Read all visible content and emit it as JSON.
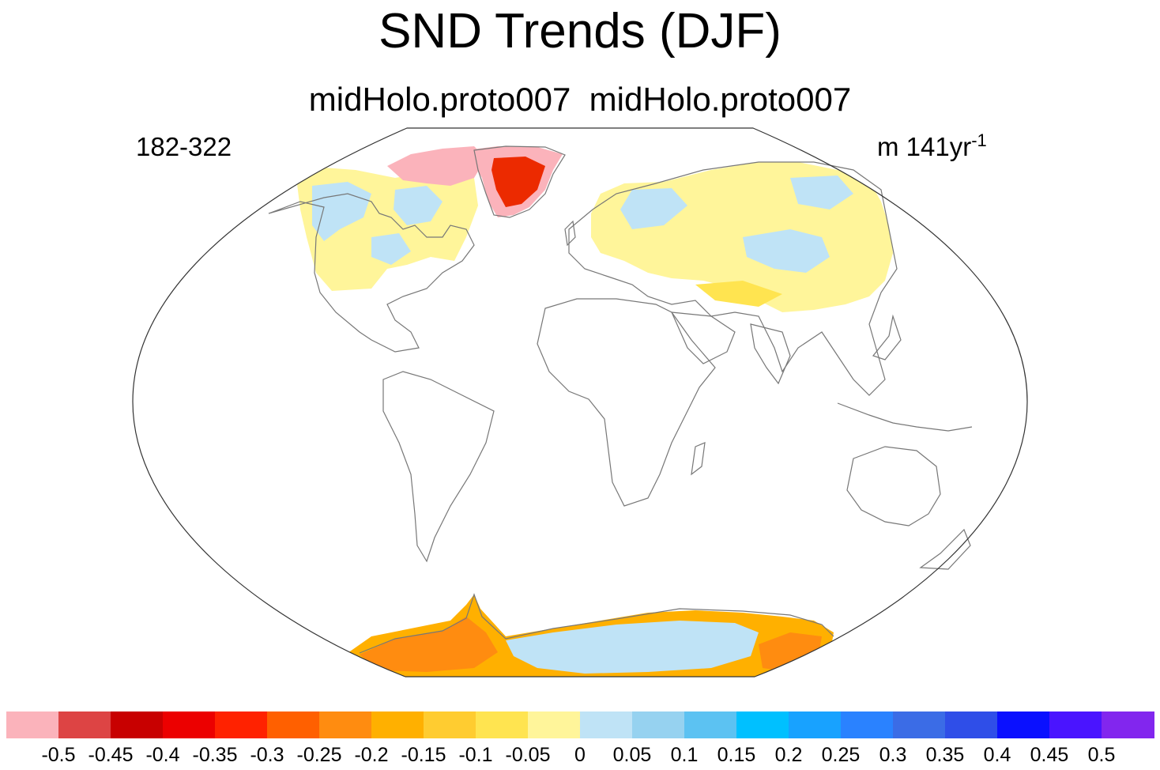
{
  "title": "SND Trends (DJF)",
  "subtitle": "midHolo.proto007  midHolo.proto007",
  "left_label": "182-322",
  "right_label": {
    "prefix": "m 141yr",
    "superscript": "-1"
  },
  "colorbar": {
    "colors": [
      "#fbb3bb",
      "#dd4444",
      "#c80000",
      "#ec0000",
      "#ff2200",
      "#ff6000",
      "#ff8c10",
      "#ffb000",
      "#ffcc30",
      "#ffe450",
      "#fff59a",
      "#bfe3f6",
      "#96d2f0",
      "#5cc2f2",
      "#00c0ff",
      "#18a2ff",
      "#2a82ff",
      "#3b6ce6",
      "#2f4ee8",
      "#0a10ff",
      "#4a14ff",
      "#8226ee"
    ],
    "labels": [
      "-0.5",
      "-0.45",
      "-0.4",
      "-0.35",
      "-0.3",
      "-0.25",
      "-0.2",
      "-0.15",
      "-0.1",
      "-0.05",
      "0",
      "0.05",
      "0.1",
      "0.15",
      "0.2",
      "0.25",
      "0.3",
      "0.35",
      "0.4",
      "0.45",
      "0.5"
    ]
  },
  "map_colors": {
    "outline": "#333333",
    "coast": "#777777",
    "greenland_pink": "#fbb3bb",
    "greenland_red": "#ec2a00",
    "light_yellow": "#fff59a",
    "yellow": "#ffe450",
    "light_blue": "#bfe3f6",
    "orange": "#ffb000",
    "deep_orange": "#ff8c10"
  }
}
